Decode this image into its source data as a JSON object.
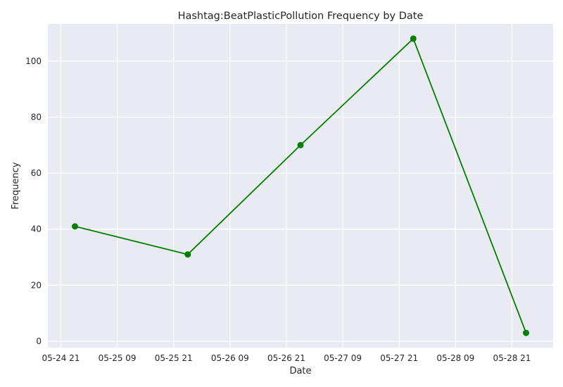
{
  "chart_data": {
    "type": "line",
    "title": "Hashtag:BeatPlasticPollution Frequency by Date",
    "xlabel": "Date",
    "ylabel": "Frequency",
    "grid": true,
    "x_tick_labels": [
      "05-24 21",
      "05-25 09",
      "05-25 21",
      "05-26 09",
      "05-26 21",
      "05-27 09",
      "05-27 21",
      "05-28 09",
      "05-28 21"
    ],
    "y_ticks": [
      0,
      20,
      40,
      60,
      80,
      100
    ],
    "ylim": [
      -2.25,
      113.25
    ],
    "xlim": [
      "2023-05-24 18:14",
      "2023-05-29 05:46"
    ],
    "series": [
      {
        "color": "#008000",
        "marker": "circle",
        "points": [
          {
            "x": "2023-05-25",
            "y": 41
          },
          {
            "x": "2023-05-26",
            "y": 31
          },
          {
            "x": "2023-05-27",
            "y": 70
          },
          {
            "x": "2023-05-28",
            "y": 108
          },
          {
            "x": "2023-05-29",
            "y": 3
          }
        ]
      }
    ]
  }
}
